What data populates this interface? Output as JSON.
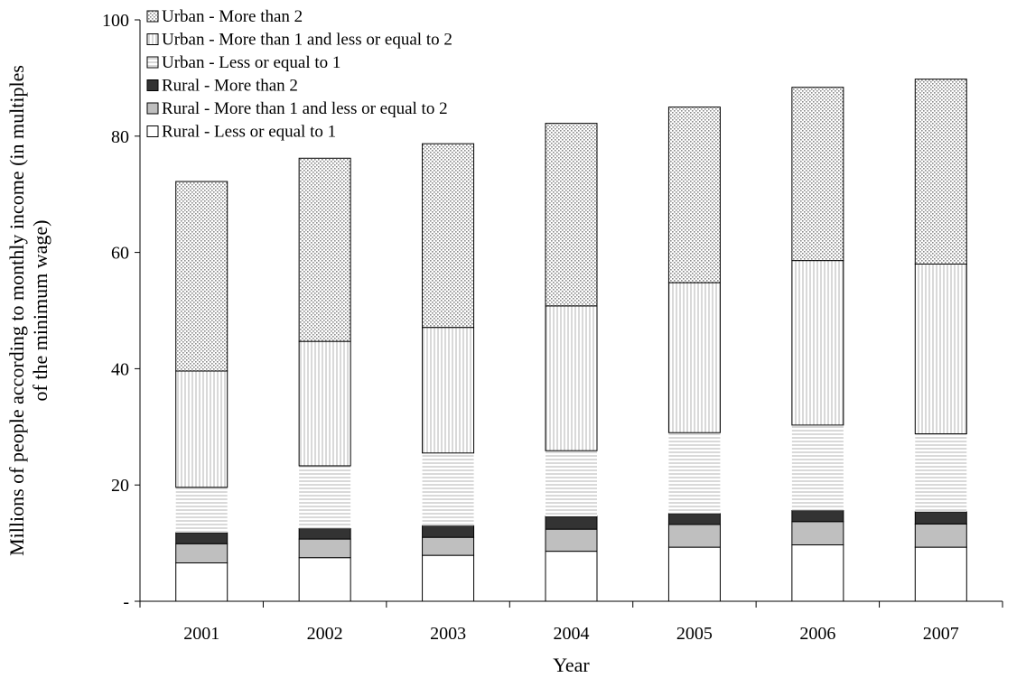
{
  "chart_data": {
    "type": "bar",
    "stacked": true,
    "xlabel": "Year",
    "ylabel": "Millions of people according to monthly income (in multiples of the minimum wage)",
    "ylim": [
      0,
      100
    ],
    "yticks": [
      0,
      20,
      40,
      60,
      80,
      100
    ],
    "ytick_labels": [
      "-",
      "20",
      "40",
      "60",
      "80",
      "100"
    ],
    "categories": [
      "2001",
      "2002",
      "2003",
      "2004",
      "2005",
      "2006",
      "2007"
    ],
    "legend_position": "top-left",
    "series": [
      {
        "name": "Rural - Less or equal to 1",
        "pattern": "white",
        "values": [
          6.6,
          7.5,
          7.9,
          8.6,
          9.3,
          9.7,
          9.3
        ]
      },
      {
        "name": "Rural - More than 1 and less or equal to 2",
        "pattern": "gray",
        "values": [
          3.3,
          3.2,
          3.1,
          3.8,
          3.9,
          4.0,
          4.0
        ]
      },
      {
        "name": "Rural - More than 2",
        "pattern": "dark",
        "values": [
          1.9,
          1.8,
          2.0,
          2.2,
          1.9,
          1.9,
          2.1
        ]
      },
      {
        "name": "Urban - Less or equal to 1",
        "pattern": "hlines",
        "values": [
          7.8,
          10.8,
          12.5,
          11.3,
          13.9,
          14.7,
          13.4
        ]
      },
      {
        "name": "Urban - More than 1 and less or equal to 2",
        "pattern": "vlines",
        "values": [
          20.0,
          21.4,
          21.6,
          24.9,
          25.8,
          28.3,
          29.2
        ]
      },
      {
        "name": "Urban - More than 2",
        "pattern": "dots",
        "values": [
          32.6,
          31.5,
          31.6,
          31.4,
          30.2,
          29.8,
          31.8
        ]
      }
    ]
  }
}
